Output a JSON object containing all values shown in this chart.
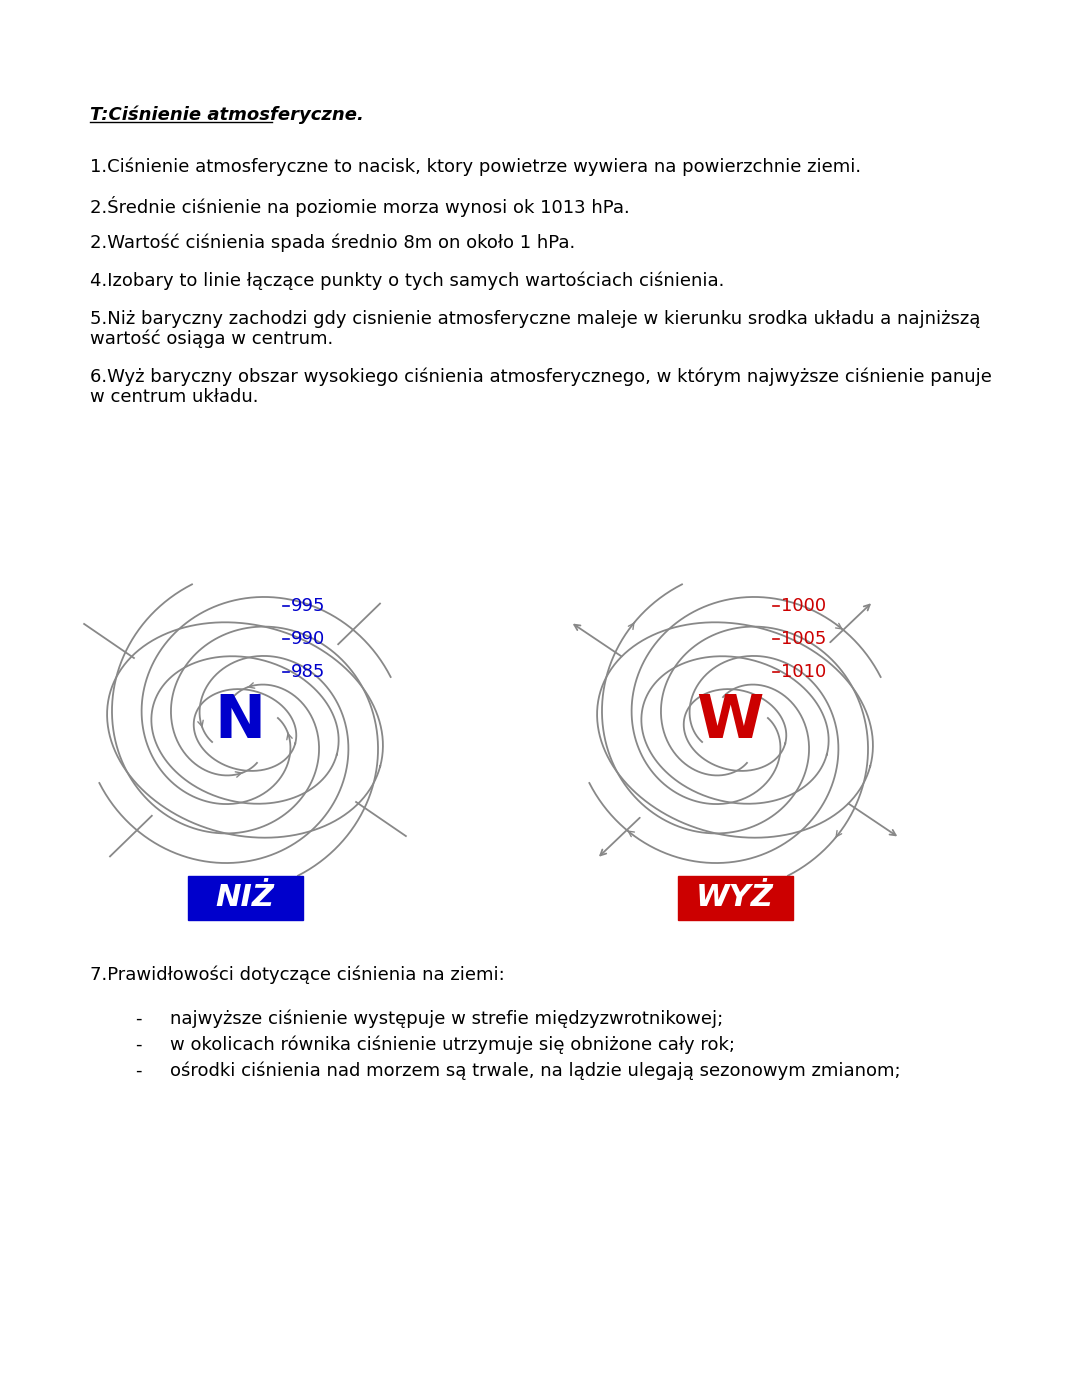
{
  "title": "T:Ciśnienie atmosferyczne.",
  "bg_color": "#ffffff",
  "text_color": "#000000",
  "paragraphs": [
    "1.Ciśnienie atmosferyczne to nacisk, ktory powietrze wywiera na powierzchnie ziemi.",
    "2.Średnie ciśnienie na poziomie morza wynosi ok 1013 hPa.",
    "2.Wartość ciśnienia spada średnio 8m on około 1 hPa.",
    "4.Izobary to linie łączące punkty o tych samych wartościach ciśnienia.",
    "5.Niż baryczny zachodzi gdy cisnienie atmosferyczne maleje w kierunku srodka układu a najniższą\nwartość osiąga w centrum.",
    "6.Wyż baryczny obszar wysokiego ciśnienia atmosferycznego, w którym najwyższe ciśnienie panuje\nw centrum układu."
  ],
  "para7": "7.Prawidłowości dotyczące ciśnienia na ziemi:",
  "bullets": [
    "najwyższe ciśnienie występuje w strefie międzyzwrotnikowej;",
    "w okolicach równika ciśnienie utrzymuje się obniżone cały rok;",
    "ośrodki ciśnienia nad morzem są trwale, na lądzie ulegają sezonowym zmianom;"
  ],
  "niz_label": "NIŻ",
  "wyz_label": "WYŻ",
  "niz_center_label": "N",
  "wyz_center_label": "W",
  "niz_values": [
    "985",
    "990",
    "995"
  ],
  "wyz_values": [
    "1010",
    "1005",
    "1000"
  ],
  "niz_color": "#0000cc",
  "wyz_color": "#cc0000",
  "spiral_color": "#888888",
  "font_size_main": 13,
  "font_size_title": 13
}
